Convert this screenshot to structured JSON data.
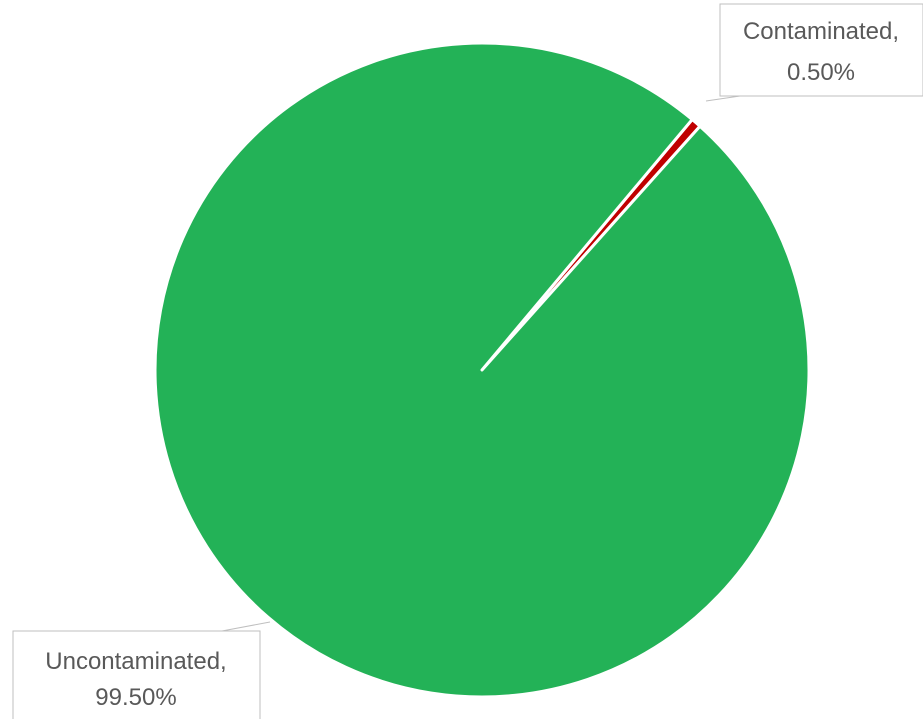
{
  "chart_data": {
    "type": "pie",
    "title": "",
    "start_angle_deg": 40,
    "slices": [
      {
        "name": "Contaminated",
        "value": 0.5,
        "label_line1": "Contaminated,",
        "label_line2": "0.50%",
        "color": "#C00000"
      },
      {
        "name": "Uncontaminated",
        "value": 99.5,
        "label_line1": "Uncontaminated,",
        "label_line2": "99.50%",
        "color": "#23B257"
      }
    ],
    "legend": "none"
  }
}
